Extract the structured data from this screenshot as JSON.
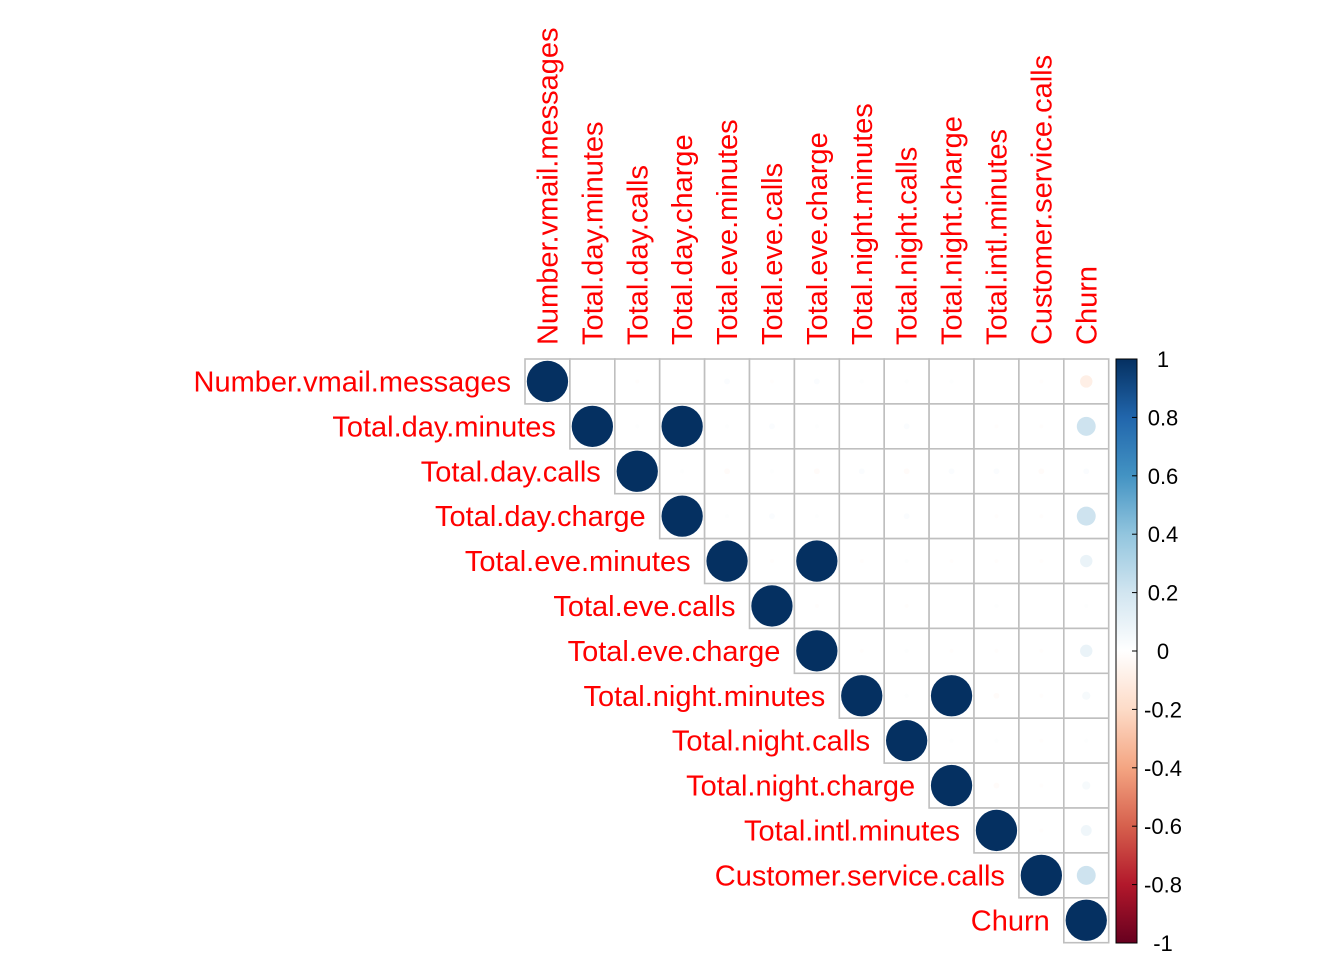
{
  "chart_data": {
    "type": "heatmap",
    "style": "corrplot-circle-upper-triangle",
    "title": "",
    "variables": [
      "Number.vmail.messages",
      "Total.day.minutes",
      "Total.day.calls",
      "Total.day.charge",
      "Total.eve.minutes",
      "Total.eve.calls",
      "Total.eve.charge",
      "Total.night.minutes",
      "Total.night.calls",
      "Total.night.charge",
      "Total.intl.minutes",
      "Customer.service.calls",
      "Churn"
    ],
    "matrix": [
      [
        1,
        0.0,
        -0.01,
        0.0,
        0.02,
        -0.01,
        0.02,
        0.01,
        0.01,
        0.01,
        0.0,
        -0.01,
        -0.09
      ],
      [
        null,
        1,
        0.01,
        1.0,
        0.01,
        0.02,
        0.01,
        0.0,
        0.02,
        0.0,
        -0.01,
        -0.01,
        0.21
      ],
      [
        null,
        null,
        1,
        0.01,
        -0.02,
        0.01,
        -0.02,
        0.02,
        -0.02,
        0.02,
        0.02,
        -0.02,
        0.02
      ],
      [
        null,
        null,
        null,
        1,
        0.01,
        0.02,
        0.01,
        0.0,
        0.02,
        0.0,
        -0.01,
        -0.01,
        0.21
      ],
      [
        null,
        null,
        null,
        null,
        1,
        -0.01,
        1.0,
        -0.01,
        0.01,
        -0.01,
        -0.01,
        -0.01,
        0.09
      ],
      [
        null,
        null,
        null,
        null,
        null,
        1,
        -0.01,
        0.0,
        -0.01,
        0.0,
        0.01,
        0.0,
        0.01
      ],
      [
        null,
        null,
        null,
        null,
        null,
        null,
        1,
        -0.01,
        0.01,
        -0.01,
        -0.01,
        -0.01,
        0.09
      ],
      [
        null,
        null,
        null,
        null,
        null,
        null,
        null,
        1,
        0.01,
        1.0,
        -0.02,
        -0.01,
        0.04
      ],
      [
        null,
        null,
        null,
        null,
        null,
        null,
        null,
        null,
        1,
        0.01,
        0.01,
        -0.01,
        0.01
      ],
      [
        null,
        null,
        null,
        null,
        null,
        null,
        null,
        null,
        null,
        1,
        -0.02,
        -0.01,
        0.04
      ],
      [
        null,
        null,
        null,
        null,
        null,
        null,
        null,
        null,
        null,
        null,
        1,
        -0.01,
        0.07
      ],
      [
        null,
        null,
        null,
        null,
        null,
        null,
        null,
        null,
        null,
        null,
        null,
        1,
        0.21
      ],
      [
        null,
        null,
        null,
        null,
        null,
        null,
        null,
        null,
        null,
        null,
        null,
        null,
        1
      ]
    ],
    "colorbar": {
      "range": [
        -1,
        1
      ],
      "ticks": [
        "1",
        "0.8",
        "0.6",
        "0.4",
        "0.2",
        "0",
        "-0.2",
        "-0.4",
        "-0.6",
        "-0.8",
        "-1"
      ],
      "colors": [
        "#67001f",
        "#b2182b",
        "#d6604d",
        "#f4a582",
        "#fddbc7",
        "#ffffff",
        "#d1e5f0",
        "#92c5de",
        "#4393c3",
        "#2166ac",
        "#053061"
      ]
    },
    "label_color": "#ff0000",
    "grid_color": "#bfbfbf",
    "legend_position": "right"
  }
}
